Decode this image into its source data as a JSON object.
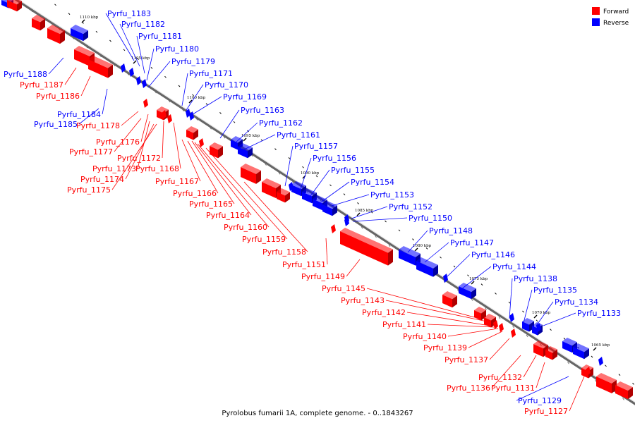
{
  "footer": "Pyrolobus fumarii 1A, complete genome. - 0..1843267",
  "legend": [
    {
      "label": "Forward",
      "color": "#ff0000"
    },
    {
      "label": "Reverse",
      "color": "#0000ff"
    }
  ],
  "colors": {
    "forward": "#ff0000",
    "reverse": "#0000ff",
    "axis": "#999999"
  },
  "ticks": [
    "1110 kbp",
    "1105 kbp",
    "1100 kbp",
    "1095 kbp",
    "1090 kbp",
    "1085 kbp",
    "1080 kbp",
    "1075 kbp",
    "1070 kbp",
    "1065 kbp"
  ],
  "genes": {
    "forward": [
      "Pyrfu_1187",
      "Pyrfu_1186",
      "Pyrfu_1178",
      "Pyrfu_1176",
      "Pyrfu_1177",
      "Pyrfu_1172",
      "Pyrfu_1173",
      "Pyrfu_1168",
      "Pyrfu_1174",
      "Pyrfu_1175",
      "Pyrfu_1167",
      "Pyrfu_1166",
      "Pyrfu_1165",
      "Pyrfu_1164",
      "Pyrfu_1160",
      "Pyrfu_1159",
      "Pyrfu_1158",
      "Pyrfu_1151",
      "Pyrfu_1149",
      "Pyrfu_1145",
      "Pyrfu_1143",
      "Pyrfu_1142",
      "Pyrfu_1141",
      "Pyrfu_1140",
      "Pyrfu_1139",
      "Pyrfu_1137",
      "Pyrfu_1132",
      "Pyrfu_1136",
      "Pyrfu_1131",
      "Pyrfu_1127"
    ],
    "reverse": [
      "Pyrfu_1183",
      "Pyrfu_1182",
      "Pyrfu_1181",
      "Pyrfu_1180",
      "Pyrfu_1179",
      "Pyrfu_1188",
      "Pyrfu_1171",
      "Pyrfu_1170",
      "Pyrfu_1169",
      "Pyrfu_1184",
      "Pyrfu_1185",
      "Pyrfu_1163",
      "Pyrfu_1162",
      "Pyrfu_1161",
      "Pyrfu_1157",
      "Pyrfu_1156",
      "Pyrfu_1155",
      "Pyrfu_1154",
      "Pyrfu_1153",
      "Pyrfu_1152",
      "Pyrfu_1150",
      "Pyrfu_1148",
      "Pyrfu_1147",
      "Pyrfu_1146",
      "Pyrfu_1144",
      "Pyrfu_1138",
      "Pyrfu_1135",
      "Pyrfu_1134",
      "Pyrfu_1133",
      "Pyrfu_1129"
    ]
  }
}
